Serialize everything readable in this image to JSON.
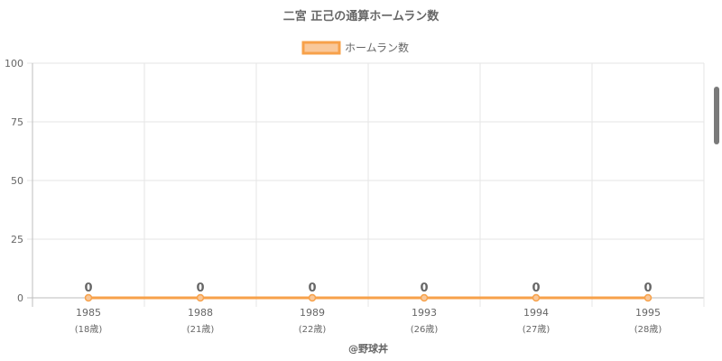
{
  "chart_data": {
    "type": "line",
    "title": "二宮 正己の通算ホームラン数",
    "series": [
      {
        "name": "ホームラン数",
        "values": [
          0,
          0,
          0,
          0,
          0,
          0
        ],
        "color": "#f7a14a"
      }
    ],
    "categories": [
      "1985",
      "1988",
      "1989",
      "1993",
      "1994",
      "1995"
    ],
    "category_sublabels": [
      "(18歳)",
      "(21歳)",
      "(22歳)",
      "(26歳)",
      "(27歳)",
      "(28歳)"
    ],
    "data_labels": [
      "0",
      "0",
      "0",
      "0",
      "0",
      "0"
    ],
    "yticks": [
      "0",
      "25",
      "50",
      "75",
      "100"
    ],
    "ylim": [
      0,
      100
    ],
    "grid": true,
    "legend_position": "top-center",
    "fill_color": "#f9c89a"
  },
  "footer": "@野球丼"
}
